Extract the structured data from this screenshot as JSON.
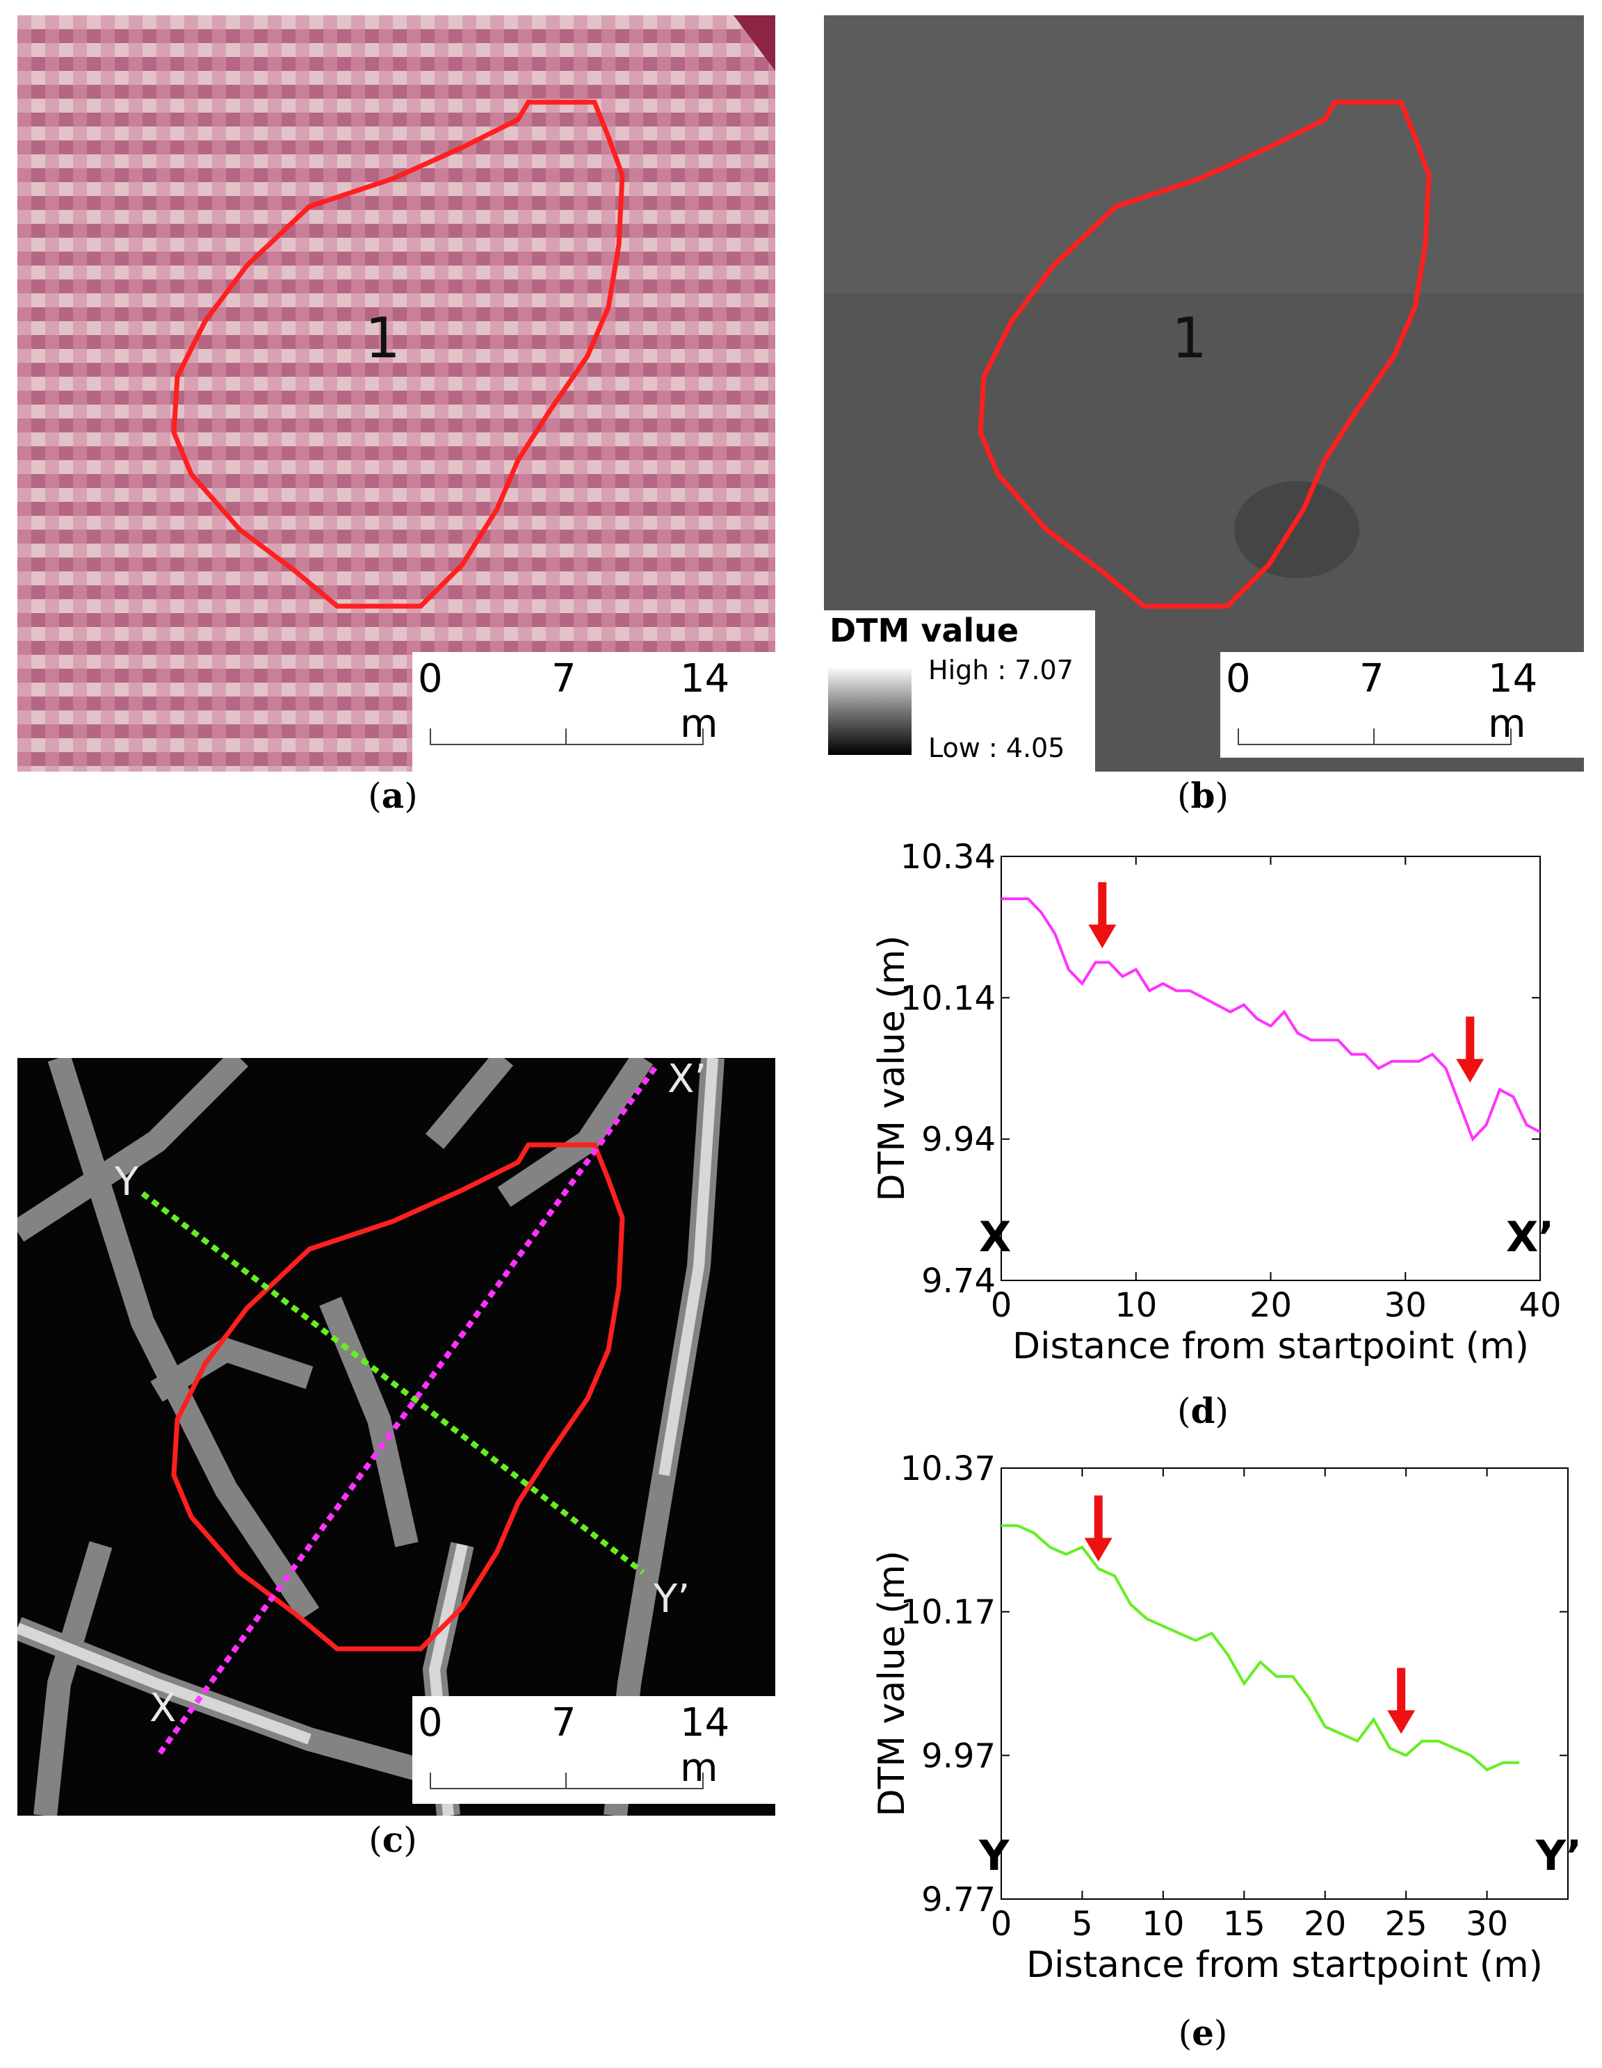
{
  "captions": {
    "a": "a",
    "b": "b",
    "c": "c",
    "d": "d",
    "e": "e"
  },
  "scalebar": {
    "t0": "0",
    "t1": "7",
    "t2": "14 m"
  },
  "polygon_label": "1",
  "legend": {
    "title": "DTM value",
    "high": "High : 7.07",
    "low": "Low : 4.05"
  },
  "transect_labels": {
    "x": "X",
    "x_prime": "X’",
    "y": "Y",
    "y_prime": "Y’"
  },
  "colors": {
    "polygon": "#ff1f1f",
    "transect_x": "#ff33ff",
    "transect_y": "#66ee22",
    "arrow": "#ee1111",
    "panel_a_bg": "#c97f98",
    "panel_b_bg": "#555555",
    "panel_c_bg": "#050505"
  },
  "chart_data": [
    {
      "type": "line",
      "panel": "d",
      "xlabel": "Distance from startpoint (m)",
      "ylabel": "DTM value (m)",
      "xlim": [
        0,
        40
      ],
      "ylim": [
        9.74,
        10.34
      ],
      "xticks": [
        0,
        10,
        20,
        30,
        40
      ],
      "yticks": [
        "9.74",
        "9.94",
        "10.14",
        "10.34"
      ],
      "start_label": "X",
      "end_label": "X’",
      "series": [
        {
          "color": "#ff33ff",
          "x": [
            0,
            1,
            2,
            3,
            4,
            5,
            6,
            7,
            8,
            9,
            10,
            11,
            12,
            13,
            14,
            15,
            16,
            17,
            18,
            19,
            20,
            21,
            22,
            23,
            24,
            25,
            26,
            27,
            28,
            29,
            30,
            31,
            32,
            33,
            34,
            35,
            36,
            37,
            38,
            39,
            40
          ],
          "y": [
            10.28,
            10.28,
            10.28,
            10.26,
            10.23,
            10.18,
            10.16,
            10.19,
            10.19,
            10.17,
            10.18,
            10.15,
            10.16,
            10.15,
            10.15,
            10.14,
            10.13,
            10.12,
            10.13,
            10.11,
            10.1,
            10.12,
            10.09,
            10.08,
            10.08,
            10.08,
            10.06,
            10.06,
            10.04,
            10.05,
            10.05,
            10.05,
            10.06,
            10.04,
            9.99,
            9.94,
            9.96,
            10.01,
            10.0,
            9.96,
            9.95
          ]
        }
      ],
      "arrows": [
        {
          "x": 7.5,
          "y": 10.21
        },
        {
          "x": 34.8,
          "y": 10.02
        }
      ]
    },
    {
      "type": "line",
      "panel": "e",
      "xlabel": "Distance from startpoint (m)",
      "ylabel": "DTM value (m)",
      "xlim": [
        0,
        35
      ],
      "ylim": [
        9.77,
        10.37
      ],
      "xticks": [
        0,
        5,
        10,
        15,
        20,
        25,
        30
      ],
      "yticks": [
        "9.77",
        "9.97",
        "10.17",
        "10.37"
      ],
      "start_label": "Y",
      "end_label": "Y’",
      "series": [
        {
          "color": "#66ee22",
          "x": [
            0,
            1,
            2,
            3,
            4,
            5,
            6,
            7,
            8,
            9,
            10,
            11,
            12,
            13,
            14,
            15,
            16,
            17,
            18,
            19,
            20,
            21,
            22,
            23,
            24,
            25,
            26,
            27,
            28,
            29,
            30,
            31,
            32
          ],
          "y": [
            10.29,
            10.29,
            10.28,
            10.26,
            10.25,
            10.26,
            10.23,
            10.22,
            10.18,
            10.16,
            10.15,
            10.14,
            10.13,
            10.14,
            10.11,
            10.07,
            10.1,
            10.08,
            10.08,
            10.05,
            10.01,
            10.0,
            9.99,
            10.02,
            9.98,
            9.97,
            9.99,
            9.99,
            9.98,
            9.97,
            9.95,
            9.96,
            9.96
          ]
        }
      ],
      "arrows": [
        {
          "x": 6.0,
          "y": 10.24
        },
        {
          "x": 24.7,
          "y": 10.0
        }
      ]
    }
  ]
}
